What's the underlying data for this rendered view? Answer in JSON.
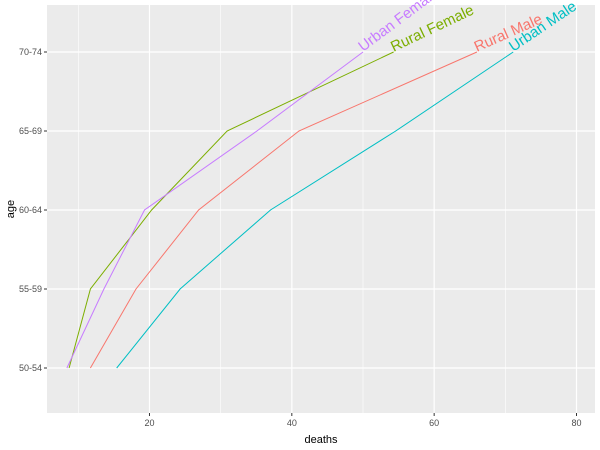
{
  "chart_data": {
    "type": "line",
    "title": "",
    "xlabel": "deaths",
    "ylabel": "age",
    "xlim": [
      5.6,
      82.6
    ],
    "x_ticks": [
      20,
      40,
      60,
      80
    ],
    "categories": [
      "50-54",
      "55-59",
      "60-64",
      "65-69",
      "70-74"
    ],
    "grid": true,
    "legend": "none",
    "series": [
      {
        "name": "Rural Male",
        "color": "#F8766D",
        "x": [
          11.7,
          18.1,
          26.9,
          41.0,
          66.0
        ]
      },
      {
        "name": "Rural Female",
        "color": "#7CAE00",
        "x": [
          8.7,
          11.7,
          20.3,
          30.9,
          54.3
        ]
      },
      {
        "name": "Urban Male",
        "color": "#00BFC4",
        "x": [
          15.4,
          24.3,
          37.0,
          54.6,
          71.1
        ]
      },
      {
        "name": "Urban Female",
        "color": "#C77CFF",
        "x": [
          8.4,
          13.6,
          19.3,
          35.1,
          50.0
        ]
      }
    ]
  }
}
